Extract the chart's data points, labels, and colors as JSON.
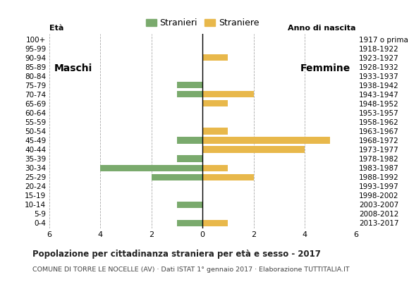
{
  "age_groups": [
    "0-4",
    "5-9",
    "10-14",
    "15-19",
    "20-24",
    "25-29",
    "30-34",
    "35-39",
    "40-44",
    "45-49",
    "50-54",
    "55-59",
    "60-64",
    "65-69",
    "70-74",
    "75-79",
    "80-84",
    "85-89",
    "90-94",
    "95-99",
    "100+"
  ],
  "birth_years": [
    "2013-2017",
    "2008-2012",
    "2003-2007",
    "1998-2002",
    "1993-1997",
    "1988-1992",
    "1983-1987",
    "1978-1982",
    "1973-1977",
    "1968-1972",
    "1963-1967",
    "1958-1962",
    "1953-1957",
    "1948-1952",
    "1943-1947",
    "1938-1942",
    "1933-1937",
    "1928-1932",
    "1923-1927",
    "1918-1922",
    "1917 o prima"
  ],
  "stranieri_males": [
    1,
    0,
    1,
    0,
    0,
    2,
    4,
    1,
    0,
    1,
    0,
    0,
    0,
    0,
    1,
    1,
    0,
    0,
    0,
    0,
    0
  ],
  "straniere_females": [
    1,
    0,
    0,
    0,
    0,
    2,
    1,
    0,
    4,
    5,
    1,
    0,
    0,
    1,
    2,
    0,
    0,
    0,
    1,
    0,
    0
  ],
  "male_color": "#7aaa6d",
  "female_color": "#e8b84b",
  "xlim": 6,
  "title": "Popolazione per cittadinanza straniera per età e sesso - 2017",
  "subtitle": "COMUNE DI TORRE LE NOCELLE (AV) · Dati ISTAT 1° gennaio 2017 · Elaborazione TUTTITALIA.IT",
  "legend_male": "Stranieri",
  "legend_female": "Straniere",
  "label_eta": "Età",
  "label_anno": "Anno di nascita",
  "label_maschi": "Maschi",
  "label_femmine": "Femmine",
  "bg_color": "#ffffff"
}
